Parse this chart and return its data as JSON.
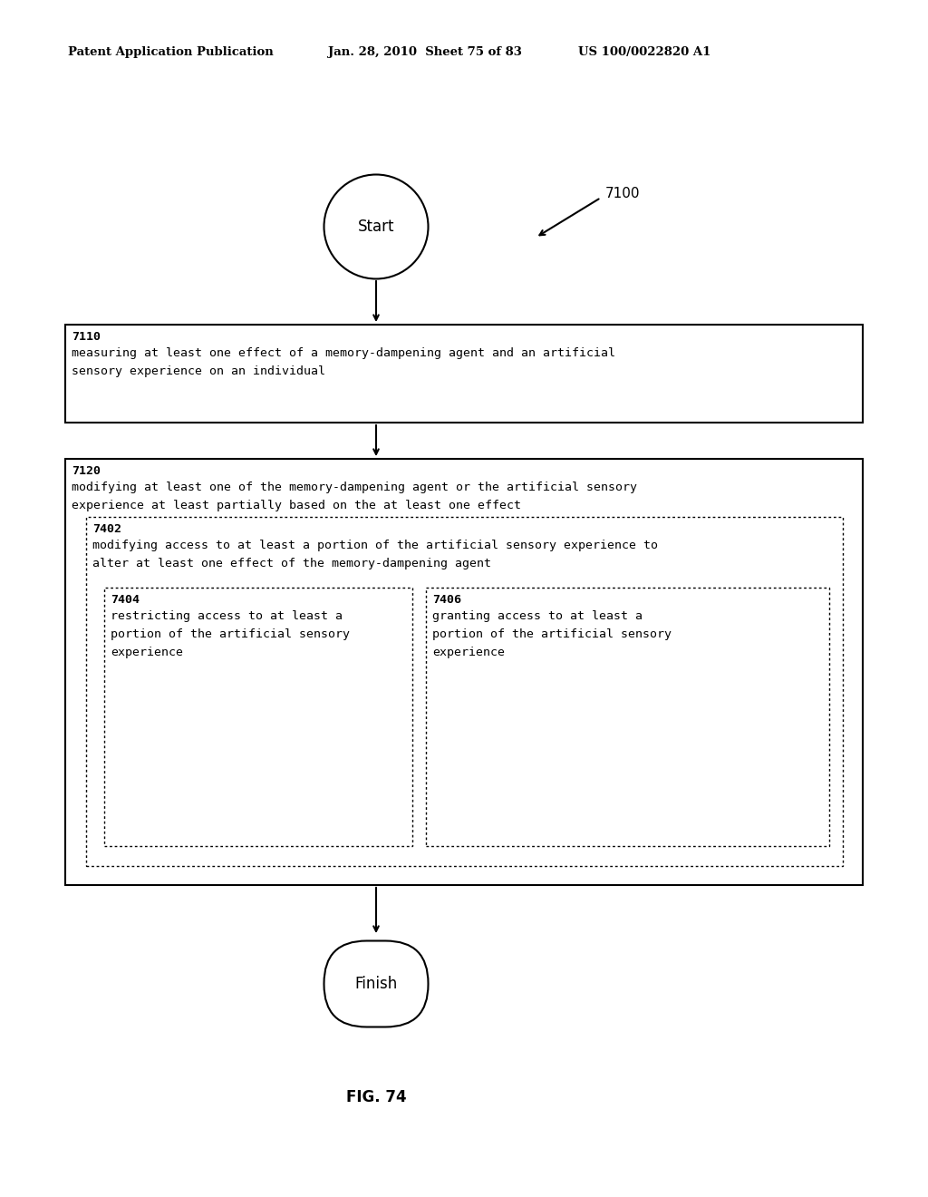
{
  "bg_color": "#ffffff",
  "header_left": "Patent Application Publication",
  "header_mid": "Jan. 28, 2010  Sheet 75 of 83",
  "header_right": "US 100/0022820 A1",
  "fig_label": "FIG. 74",
  "start_label": "Start",
  "finish_label": "Finish",
  "ref_7100": "7100",
  "box7110_id": "7110",
  "box7110_line1": "measuring at least one effect of a memory-dampening agent and an artificial",
  "box7110_line2": "sensory experience on an individual",
  "box7120_id": "7120",
  "box7120_line1": "modifying at least one of the memory-dampening agent or the artificial sensory",
  "box7120_line2": "experience at least partially based on the at least one effect",
  "box7402_id": "7402",
  "box7402_line1": "modifying access to at least a portion of the artificial sensory experience to",
  "box7402_line2": "alter at least one effect of the memory-dampening agent",
  "box7404_id": "7404",
  "box7404_line1": "restricting access to at least a",
  "box7404_line2": "portion of the artificial sensory",
  "box7404_line3": "experience",
  "box7406_id": "7406",
  "box7406_line1": "granting access to at least a",
  "box7406_line2": "portion of the artificial sensory",
  "box7406_line3": "experience"
}
